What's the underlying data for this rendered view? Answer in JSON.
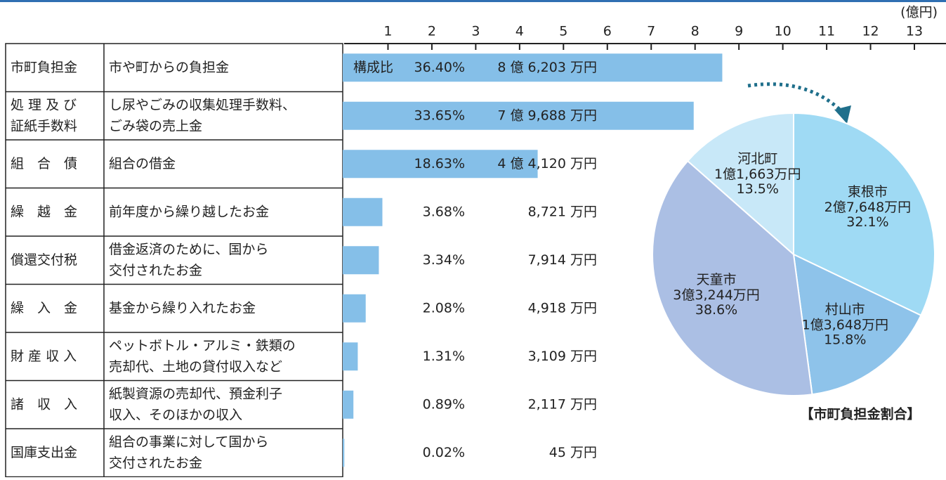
{
  "chart_data": [
    {
      "type": "bar",
      "axis_unit": "(億円)",
      "xlim": [
        0,
        13
      ],
      "xticks": [
        1,
        2,
        3,
        4,
        5,
        6,
        7,
        8,
        9,
        10,
        11,
        12,
        13
      ],
      "color": "#85bfe8",
      "share_heading": "構成比",
      "categories": [
        [
          "市町負担金"
        ],
        [
          "処 理 及 び",
          "証紙手数料"
        ],
        [
          "組　合　債"
        ],
        [
          "繰　越　金"
        ],
        [
          "償還交付税"
        ],
        [
          "繰　入　金"
        ],
        [
          "財 産 収 入"
        ],
        [
          "諸　収　入"
        ],
        [
          "国庫支出金"
        ]
      ],
      "descriptions": [
        [
          "市や町からの負担金"
        ],
        [
          "し尿やごみの収集処理手数料、",
          "ごみ袋の売上金"
        ],
        [
          "組合の借金"
        ],
        [
          "前年度から繰り越したお金"
        ],
        [
          "借金返済のために、国から",
          "交付されたお金"
        ],
        [
          "基金から繰り入れたお金"
        ],
        [
          "ペットボトル・アルミ・鉄類の",
          "売却代、土地の貸付収入など"
        ],
        [
          "紙製資源の売却代、預金利子",
          "収入、そのほかの収入"
        ],
        [
          "組合の事業に対して国から",
          "交付されたお金"
        ]
      ],
      "share_labels": [
        "36.40%",
        "33.65%",
        "18.63%",
        "3.68%",
        "3.34%",
        "2.08%",
        "1.31%",
        "0.89%",
        "0.02%"
      ],
      "values": [
        8.6203,
        7.9688,
        4.412,
        0.8721,
        0.7914,
        0.4918,
        0.3109,
        0.2117,
        0.0045
      ],
      "value_labels": [
        "8 億 6,203 万円",
        "7 億 9,688 万円",
        "4 億 4,120 万円",
        "8,721 万円",
        "7,914 万円",
        "4,918 万円",
        "3,109 万円",
        "2,117 万円",
        "45 万円"
      ]
    },
    {
      "type": "pie",
      "title": "【市町負担金割合】",
      "categories": [
        "東根市",
        "村山市",
        "天童市",
        "河北町"
      ],
      "values": [
        32.1,
        15.8,
        38.6,
        13.5
      ],
      "value_labels": [
        "32.1%",
        "15.8%",
        "38.6%",
        "13.5%"
      ],
      "amount_labels": [
        "2億7,648万円",
        "1億3,648万円",
        "3億3,244万円",
        "1億1,663万円"
      ],
      "colors": [
        "#9fdaf4",
        "#8ec3ea",
        "#abbfe4",
        "#c8e8f8"
      ]
    }
  ]
}
